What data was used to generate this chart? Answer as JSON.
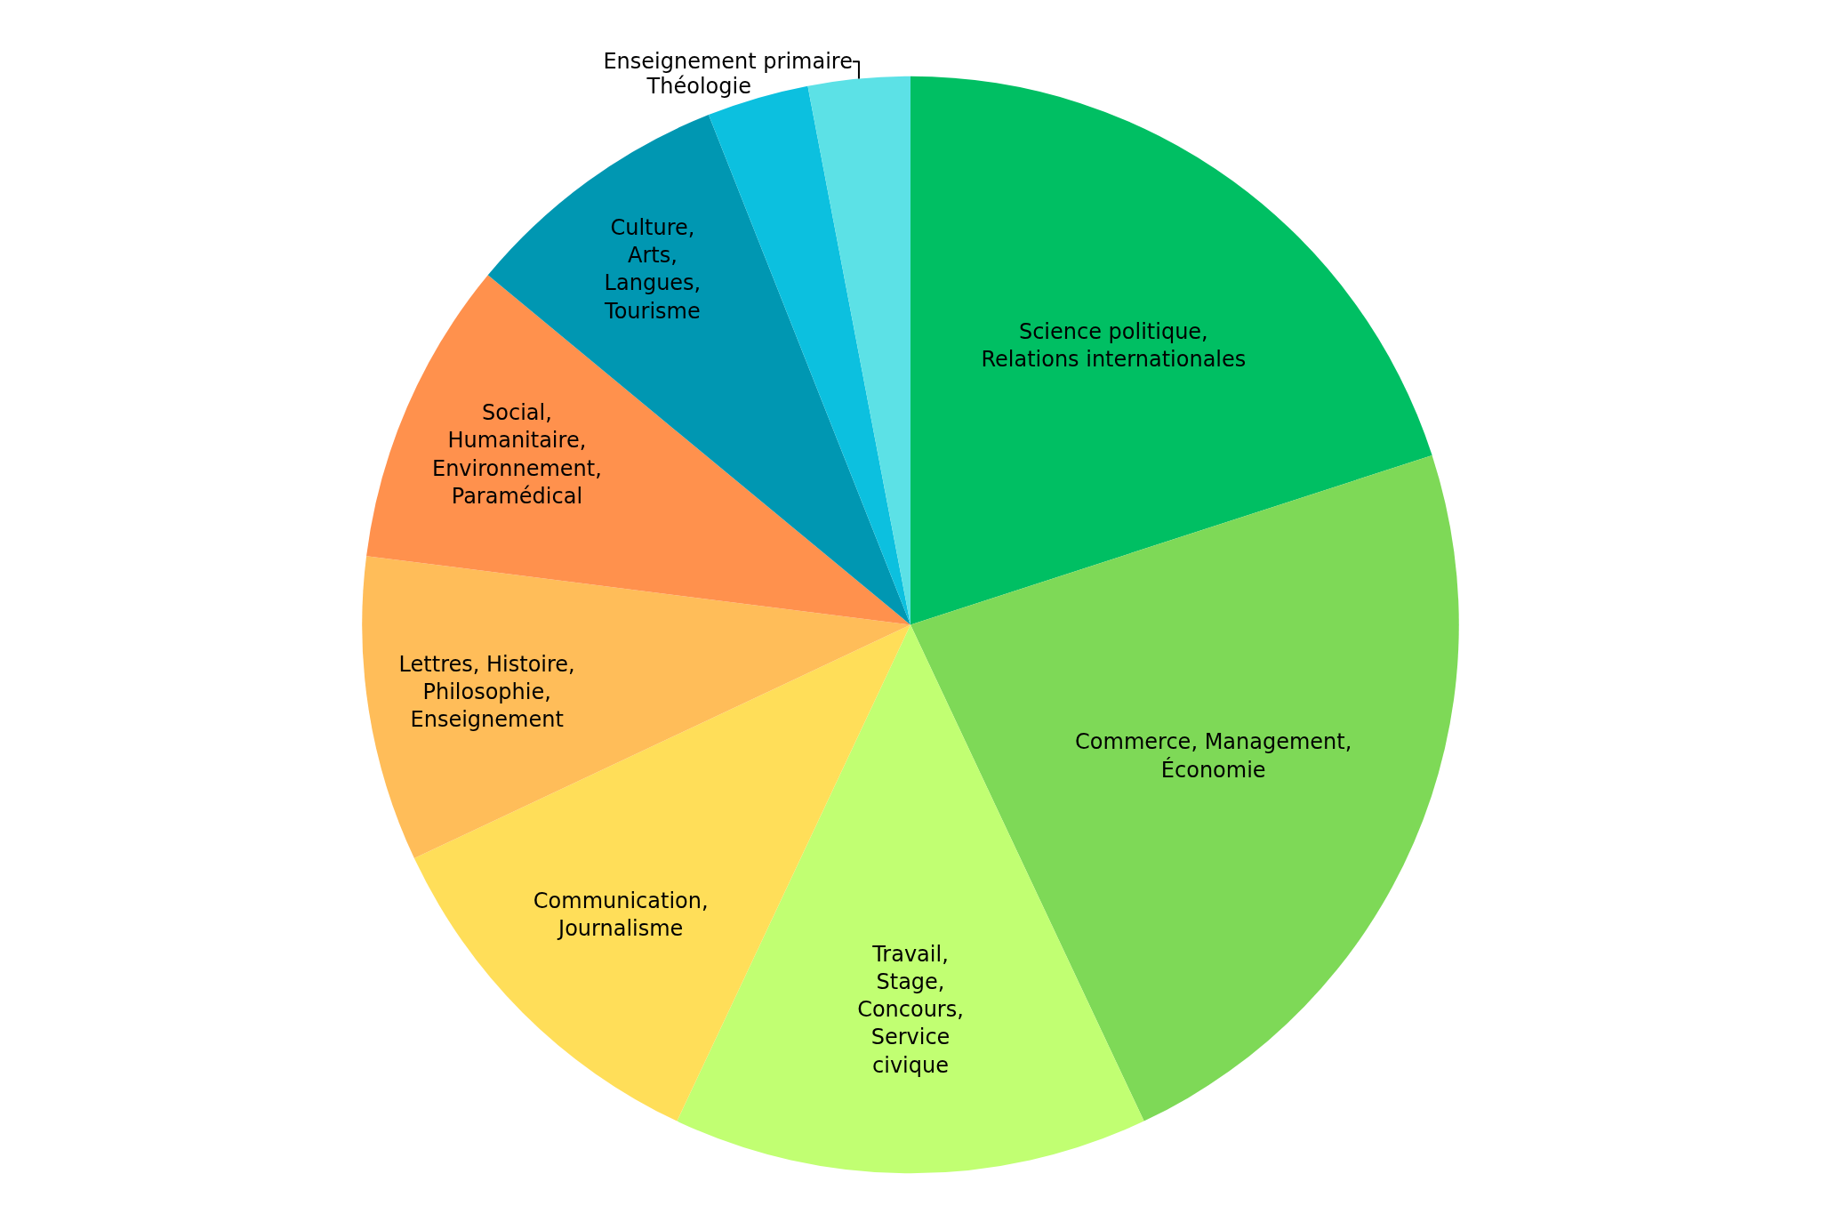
{
  "chart_data": {
    "type": "pie",
    "categories": [
      "Science politique,\nRelations internationales",
      "Commerce, Management,\nÉconomie",
      "Travail,\nStage,\nConcours,\nService\ncivique",
      "Communication,\nJournalisme",
      "Lettres, Histoire,\nPhilosophie,\nEnseignement",
      "Social,\nHumanitaire,\nEnvironnement,\nParamédical",
      "Culture,\nArts,\nLangues,\nTourisme",
      "Théologie",
      "Enseignement primaire"
    ],
    "values": [
      20,
      23,
      14,
      11,
      9,
      9,
      8,
      3,
      3
    ],
    "colors": [
      "#00bf63",
      "#7ed957",
      "#c1ff72",
      "#ffde59",
      "#ffbd59",
      "#ff914d",
      "#0097b2",
      "#0cc0df",
      "#5ce1e6"
    ],
    "legend": false
  }
}
